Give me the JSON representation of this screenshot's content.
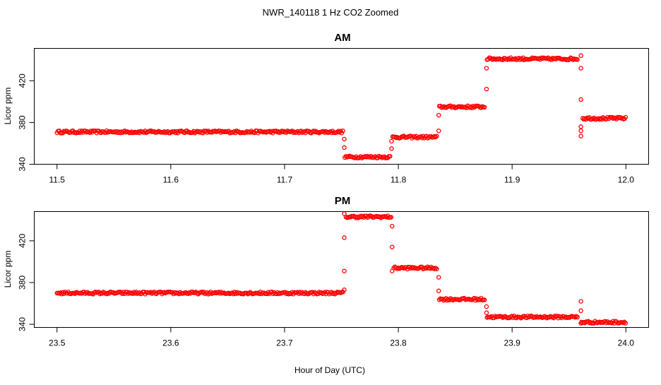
{
  "title": "NWR_140118  1 Hz CO2 Zoomed",
  "xlabel": "Hour of Day (UTC)",
  "colors": {
    "points": "#ff0000",
    "axes": "#000000"
  },
  "chart_data": [
    {
      "type": "scatter",
      "title": "AM",
      "xlabel": "",
      "ylabel": "Licor ppm",
      "xlim": [
        11.48,
        12.02
      ],
      "ylim": [
        340,
        451
      ],
      "xticks": [
        11.5,
        11.6,
        11.7,
        11.8,
        11.9,
        12.0
      ],
      "xtick_labels": [
        "11.5",
        "11.6",
        "11.7",
        "11.8",
        "11.9",
        "12.0"
      ],
      "yticks": [
        340,
        380,
        420
      ],
      "ytick_labels": [
        "340",
        "380",
        "420"
      ],
      "grid": false,
      "marker": "open-circle",
      "segments": [
        {
          "x_start": 11.5,
          "x_end": 11.752,
          "y": 371
        },
        {
          "x_start": 11.753,
          "x_end": 11.793,
          "y": 347
        },
        {
          "x_start": 11.795,
          "x_end": 11.834,
          "y": 366
        },
        {
          "x_start": 11.836,
          "x_end": 11.876,
          "y": 395
        },
        {
          "x_start": 11.878,
          "x_end": 11.958,
          "y": 441
        },
        {
          "x_start": 11.962,
          "x_end": 12.0,
          "y": 384
        }
      ],
      "transitions": [
        {
          "x": 11.7525,
          "y": [
            364,
            356
          ]
        },
        {
          "x": 11.794,
          "y": [
            355,
            362
          ]
        },
        {
          "x": 11.8355,
          "y": [
            372,
            387
          ]
        },
        {
          "x": 11.8775,
          "y": [
            412,
            432
          ]
        },
        {
          "x": 11.9605,
          "y": [
            444,
            432,
            402,
            376,
            372,
            367
          ]
        }
      ]
    },
    {
      "type": "scatter",
      "title": "PM",
      "xlabel": "",
      "ylabel": "Licor ppm",
      "xlim": [
        23.48,
        24.02
      ],
      "ylim": [
        337,
        448
      ],
      "xticks": [
        23.5,
        23.6,
        23.7,
        23.8,
        23.9,
        24.0
      ],
      "xtick_labels": [
        "23.5",
        "23.6",
        "23.7",
        "23.8",
        "23.9",
        "24.0"
      ],
      "yticks": [
        340,
        380,
        420
      ],
      "ytick_labels": [
        "340",
        "380",
        "420"
      ],
      "grid": false,
      "marker": "open-circle",
      "segments": [
        {
          "x_start": 23.5,
          "x_end": 23.752,
          "y": 370
        },
        {
          "x_start": 23.754,
          "x_end": 23.794,
          "y": 443
        },
        {
          "x_start": 23.796,
          "x_end": 23.834,
          "y": 394
        },
        {
          "x_start": 23.836,
          "x_end": 23.876,
          "y": 364
        },
        {
          "x_start": 23.878,
          "x_end": 23.958,
          "y": 347
        },
        {
          "x_start": 23.961,
          "x_end": 24.0,
          "y": 342
        }
      ],
      "transitions": [
        {
          "x": 23.7525,
          "y": [
            373,
            391,
            423,
            446
          ]
        },
        {
          "x": 23.7945,
          "y": [
            434,
            414,
            391
          ]
        },
        {
          "x": 23.8355,
          "y": [
            385,
            372
          ]
        },
        {
          "x": 23.8775,
          "y": [
            357,
            351
          ]
        },
        {
          "x": 23.9605,
          "y": [
            362,
            353,
            341
          ]
        }
      ]
    }
  ]
}
